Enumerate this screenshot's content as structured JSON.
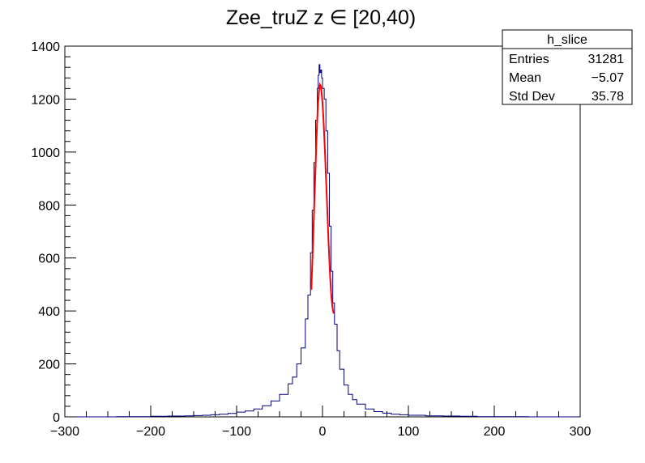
{
  "chart_data": {
    "type": "histogram",
    "title": "Zee_truZ z  ∈ [20,40)",
    "xlabel": "",
    "ylabel": "",
    "xlim": [
      -300,
      300
    ],
    "ylim": [
      0,
      1400
    ],
    "x_ticks": [
      "−300",
      "−200",
      "−100",
      "0",
      "100",
      "200",
      "300"
    ],
    "x_tick_values": [
      -300,
      -200,
      -100,
      0,
      100,
      200,
      300
    ],
    "y_ticks": [
      "0",
      "200",
      "400",
      "600",
      "800",
      "1000",
      "1200",
      "1400"
    ],
    "y_tick_values": [
      0,
      200,
      400,
      600,
      800,
      1000,
      1200,
      1400
    ],
    "grid": false,
    "legend_position": "top-right",
    "stats_box": {
      "title": "h_slice",
      "rows": [
        {
          "label": "Entries",
          "value": "31281"
        },
        {
          "label": "Mean",
          "value": "−5.07"
        },
        {
          "label": "Std Dev",
          "value": "35.78"
        }
      ]
    },
    "series": [
      {
        "color": "#000080",
        "style": "histogram",
        "x": [
          -300,
          -240,
          -200,
          -180,
          -160,
          -150,
          -140,
          -130,
          -120,
          -110,
          -100,
          -90,
          -80,
          -70,
          -60,
          -50,
          -40,
          -35,
          -30,
          -25,
          -20,
          -17,
          -14,
          -12,
          -10,
          -8,
          -6,
          -5,
          -4,
          -3,
          -2,
          -1,
          0,
          2,
          4,
          6,
          8,
          10,
          12,
          14,
          17,
          20,
          25,
          30,
          35,
          40,
          50,
          60,
          70,
          80,
          90,
          100,
          120,
          140,
          160,
          180,
          200,
          240,
          300
        ],
        "y": [
          0,
          1,
          2,
          3,
          4,
          5,
          6,
          8,
          10,
          13,
          18,
          22,
          30,
          42,
          60,
          85,
          125,
          150,
          200,
          260,
          370,
          460,
          620,
          780,
          960,
          1120,
          1240,
          1290,
          1330,
          1300,
          1310,
          1280,
          1240,
          1200,
          1080,
          920,
          720,
          550,
          430,
          350,
          250,
          180,
          120,
          85,
          65,
          48,
          30,
          20,
          14,
          10,
          8,
          6,
          4,
          3,
          2,
          1,
          1,
          0,
          0
        ]
      },
      {
        "color": "#ff0000",
        "style": "fit",
        "x": [
          -13,
          -12,
          -11,
          -10,
          -9,
          -8,
          -7,
          -6,
          -5,
          -4,
          -3,
          -2,
          -1,
          0,
          1,
          2,
          3,
          4,
          5,
          6,
          7,
          8,
          9,
          10,
          11,
          12,
          13
        ],
        "y": [
          480,
          570,
          660,
          760,
          860,
          950,
          1050,
          1130,
          1190,
          1235,
          1255,
          1250,
          1225,
          1185,
          1130,
          1065,
          990,
          910,
          830,
          745,
          665,
          590,
          525,
          470,
          430,
          405,
          390
        ]
      }
    ]
  }
}
